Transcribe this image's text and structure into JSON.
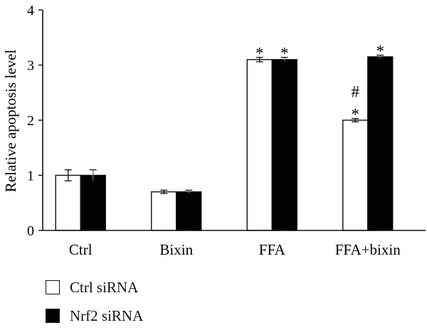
{
  "chart_data": {
    "type": "bar",
    "title": "",
    "xlabel": "",
    "ylabel": "Relative apoptosis level",
    "ylim": [
      0,
      4
    ],
    "yticks": [
      0,
      1,
      2,
      3,
      4
    ],
    "grid": false,
    "legend_position": "bottom-left",
    "categories": [
      "Ctrl",
      "Bixin",
      "FFA",
      "FFA+bixin"
    ],
    "series": [
      {
        "name": "Ctrl siRNA",
        "color": "#ffffff",
        "values": [
          1.0,
          0.7,
          3.1,
          2.0
        ],
        "errors": [
          0.1,
          0.03,
          0.04,
          0.03
        ]
      },
      {
        "name": "Nrf2 siRNA",
        "color": "#000000",
        "values": [
          1.0,
          0.7,
          3.1,
          3.15
        ],
        "errors": [
          0.1,
          0.03,
          0.04,
          0.03
        ]
      }
    ],
    "annotations": [
      {
        "category": 2,
        "series": 0,
        "text": [
          "*"
        ]
      },
      {
        "category": 2,
        "series": 1,
        "text": [
          "*"
        ]
      },
      {
        "category": 3,
        "series": 0,
        "text": [
          "#",
          "*"
        ]
      },
      {
        "category": 3,
        "series": 1,
        "text": [
          "*"
        ]
      }
    ]
  }
}
